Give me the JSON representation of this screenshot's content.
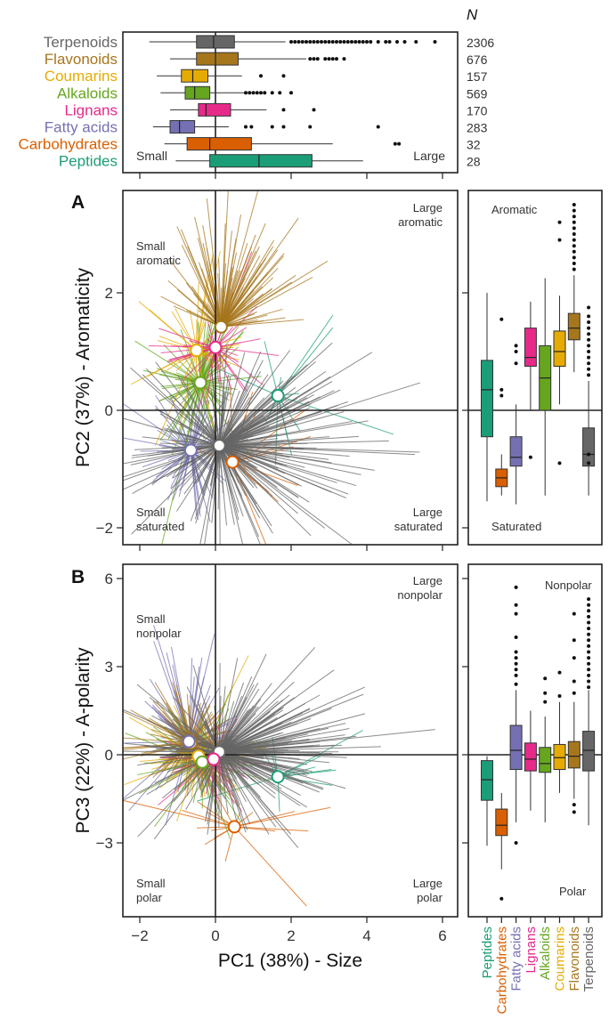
{
  "categories": [
    "Terpenoids",
    "Flavonoids",
    "Coumarins",
    "Alkaloids",
    "Lignans",
    "Fatty acids",
    "Carbohydrates",
    "Peptides"
  ],
  "colors": {
    "Terpenoids": "#666666",
    "Flavonoids": "#a6761d",
    "Coumarins": "#e6ab02",
    "Alkaloids": "#66a61e",
    "Lignans": "#e7298a",
    "Fatty acids": "#7570b3",
    "Carbohydrates": "#d95f02",
    "Peptides": "#1b9e77"
  },
  "top_panel": {
    "n_header": "N",
    "counts": [
      "2306",
      "676",
      "157",
      "569",
      "170",
      "283",
      "32",
      "28"
    ],
    "left_label": "Small",
    "right_label": "Large"
  },
  "panel_a": {
    "label": "A",
    "ylabel": "PC2 (37%) - Aromaticity",
    "quadrants": {
      "tl": [
        "Small",
        "aromatic"
      ],
      "tr": [
        "Large",
        "aromatic"
      ],
      "bl": [
        "Small",
        "saturated"
      ],
      "br": [
        "Large",
        "saturated"
      ]
    },
    "side_top": "Aromatic",
    "side_bottom": "Saturated"
  },
  "panel_b": {
    "label": "B",
    "ylabel": "PC3 (22%) - A-polarity",
    "quadrants": {
      "tl": [
        "Small",
        "nonpolar"
      ],
      "tr": [
        "Large",
        "nonpolar"
      ],
      "bl": [
        "Small",
        "polar"
      ],
      "br": [
        "Large",
        "polar"
      ]
    },
    "side_top": "Nonpolar",
    "side_bottom": "Polar"
  },
  "xlabel": "PC1 (38%) - Size",
  "side_order": [
    "Peptides",
    "Carbohydrates",
    "Fatty acids",
    "Lignans",
    "Alkaloids",
    "Coumarins",
    "Flavonoids",
    "Terpenoids"
  ],
  "chart_data": [
    {
      "type": "boxplot",
      "panel": "top",
      "axis": "PC1",
      "categories": [
        "Terpenoids",
        "Flavonoids",
        "Coumarins",
        "Alkaloids",
        "Lignans",
        "Fatty acids",
        "Carbohydrates",
        "Peptides"
      ],
      "n": [
        2306,
        676,
        157,
        569,
        170,
        283,
        32,
        28
      ],
      "q1": [
        -0.5,
        -0.5,
        -0.9,
        -0.8,
        -0.45,
        -1.2,
        -0.75,
        -0.15
      ],
      "median": [
        -0.05,
        0.0,
        -0.6,
        -0.55,
        -0.25,
        -0.95,
        -0.15,
        1.15
      ],
      "q3": [
        0.5,
        0.6,
        -0.2,
        -0.15,
        0.4,
        -0.55,
        0.95,
        2.55
      ],
      "whisker_low": [
        -1.75,
        -1.2,
        -1.55,
        -1.45,
        -1.2,
        -1.65,
        -1.35,
        -1.05
      ],
      "whisker_high": [
        1.85,
        2.4,
        0.7,
        0.75,
        1.35,
        0.35,
        3.1,
        3.9
      ],
      "outliers": [
        [
          2.0,
          2.1,
          2.2,
          2.3,
          2.4,
          2.5,
          2.6,
          2.7,
          2.8,
          2.9,
          3.0,
          3.1,
          3.2,
          3.3,
          3.4,
          3.5,
          3.6,
          3.7,
          3.8,
          3.9,
          4.0,
          4.1,
          4.3,
          4.5,
          4.6,
          4.8,
          5.0,
          5.3,
          5.8
        ],
        [
          2.5,
          2.6,
          2.7,
          2.9,
          3.0,
          3.1,
          3.2,
          3.4
        ],
        [
          1.2,
          1.8
        ],
        [
          0.8,
          0.9,
          1.0,
          1.1,
          1.2,
          1.3,
          1.5,
          1.7,
          2.0
        ],
        [
          1.8,
          2.6
        ],
        [
          0.8,
          0.95,
          1.5,
          1.8,
          2.5,
          4.3
        ],
        [
          4.75,
          4.85
        ],
        []
      ]
    },
    {
      "type": "scatter",
      "panel": "A",
      "xlabel": "PC1 (38%) - Size",
      "ylabel": "PC2 (37%) - Aromaticity",
      "xlim": [
        -2.2,
        6.4
      ],
      "ylim": [
        -2.2,
        3.6
      ],
      "xticks": [
        -2,
        0,
        2,
        4,
        6
      ],
      "yticks": [
        -2,
        0,
        2
      ],
      "centroids": {
        "Terpenoids": [
          0.1,
          -0.6
        ],
        "Flavonoids": [
          0.15,
          1.42
        ],
        "Coumarins": [
          -0.5,
          1.02
        ],
        "Alkaloids": [
          -0.4,
          0.47
        ],
        "Lignans": [
          0.0,
          1.07
        ],
        "Fatty acids": [
          -0.65,
          -0.68
        ],
        "Carbohydrates": [
          0.45,
          -0.88
        ],
        "Peptides": [
          1.65,
          0.25
        ]
      }
    },
    {
      "type": "boxplot",
      "panel": "A-side",
      "axis": "PC2",
      "categories": [
        "Peptides",
        "Carbohydrates",
        "Fatty acids",
        "Lignans",
        "Alkaloids",
        "Coumarins",
        "Flavonoids",
        "Terpenoids"
      ],
      "q1": [
        -0.45,
        -1.3,
        -0.95,
        0.75,
        0.0,
        0.75,
        1.2,
        -0.95
      ],
      "median": [
        0.35,
        -1.15,
        -0.8,
        0.9,
        0.55,
        1.0,
        1.4,
        -0.75
      ],
      "q3": [
        0.85,
        -1.0,
        -0.45,
        1.4,
        1.1,
        1.35,
        1.65,
        -0.3
      ],
      "whisker_low": [
        -1.55,
        -1.45,
        -1.6,
        0.0,
        -1.45,
        0.1,
        0.65,
        -1.45
      ],
      "whisker_high": [
        2.0,
        -0.75,
        0.1,
        1.85,
        2.25,
        1.95,
        2.3,
        0.5
      ],
      "outliers": [
        [],
        [
          0.25,
          0.35,
          1.55
        ],
        [
          0.8,
          1.0,
          1.1
        ],
        [
          -0.8
        ],
        [],
        [
          -0.9,
          2.9,
          3.2
        ],
        [
          2.4,
          2.5,
          2.6,
          2.7,
          2.8,
          2.9,
          3.0,
          3.1,
          3.2,
          3.3,
          3.4,
          3.5
        ],
        [
          -0.75,
          -0.9,
          0.6,
          0.7,
          0.8,
          0.9,
          1.0,
          1.1,
          1.2,
          1.3,
          1.4,
          1.5,
          1.6,
          1.75
        ]
      ]
    },
    {
      "type": "scatter",
      "panel": "B",
      "xlabel": "PC1 (38%) - Size",
      "ylabel": "PC3 (22%) - A-polarity",
      "xlim": [
        -2.2,
        6.4
      ],
      "ylim": [
        -5.4,
        6.6
      ],
      "xticks": [
        -2,
        0,
        2,
        4,
        6
      ],
      "yticks": [
        -3,
        0,
        3,
        6
      ],
      "centroids": {
        "Terpenoids": [
          0.1,
          0.1
        ],
        "Flavonoids": [
          -0.65,
          0.4
        ],
        "Coumarins": [
          -0.45,
          -0.05
        ],
        "Alkaloids": [
          -0.35,
          -0.25
        ],
        "Lignans": [
          -0.05,
          -0.15
        ],
        "Fatty acids": [
          -0.7,
          0.45
        ],
        "Carbohydrates": [
          0.5,
          -2.45
        ],
        "Peptides": [
          1.65,
          -0.75
        ]
      }
    },
    {
      "type": "boxplot",
      "panel": "B-side",
      "axis": "PC3",
      "categories": [
        "Peptides",
        "Carbohydrates",
        "Fatty acids",
        "Lignans",
        "Alkaloids",
        "Coumarins",
        "Flavonoids",
        "Terpenoids"
      ],
      "q1": [
        -1.55,
        -2.75,
        -0.5,
        -0.55,
        -0.6,
        -0.5,
        -0.45,
        -0.55
      ],
      "median": [
        -0.85,
        -2.4,
        0.15,
        -0.15,
        -0.3,
        -0.1,
        -0.05,
        0.15
      ],
      "q3": [
        -0.2,
        -1.85,
        1.0,
        0.4,
        0.25,
        0.35,
        0.45,
        0.8
      ],
      "whisker_low": [
        -3.1,
        -3.9,
        -2.3,
        -1.9,
        -2.3,
        -1.3,
        -1.5,
        -2.4
      ],
      "whisker_high": [
        -0.05,
        -1.3,
        2.2,
        1.5,
        1.3,
        1.8,
        1.8,
        2.2
      ],
      "outliers": [
        [],
        [
          -4.9
        ],
        [
          2.4,
          2.7,
          2.9,
          3.1,
          3.3,
          3.5,
          4.0,
          4.8,
          5.1,
          5.7,
          -3.0
        ],
        [],
        [
          1.8,
          2.1,
          2.6
        ],
        [
          2.0,
          2.8
        ],
        [
          -1.7,
          -1.95,
          2.1,
          2.5,
          3.3,
          3.9,
          4.8
        ],
        [
          2.3,
          2.5,
          2.7,
          2.9,
          3.1,
          3.3,
          3.5,
          3.7,
          3.9,
          4.1,
          4.3,
          4.5,
          4.7,
          4.9,
          5.1,
          5.3
        ]
      ]
    }
  ]
}
